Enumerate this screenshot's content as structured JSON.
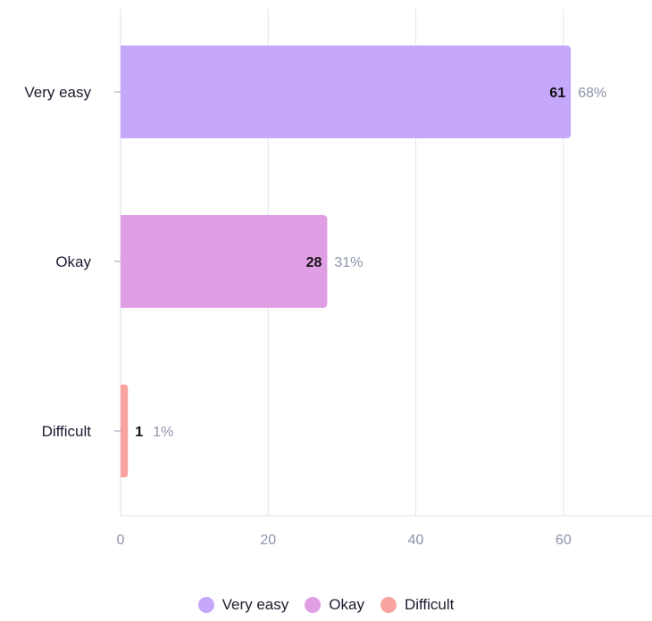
{
  "chart_data": {
    "type": "bar",
    "orientation": "horizontal",
    "categories": [
      "Very easy",
      "Okay",
      "Difficult"
    ],
    "values": [
      61,
      28,
      1
    ],
    "percent_labels": [
      "68%",
      "31%",
      "1%"
    ],
    "colors": [
      "#c5a8fb",
      "#e09fe4",
      "#f9a3a0"
    ],
    "xlim": [
      0,
      72
    ],
    "xticks": [
      0,
      20,
      40,
      60
    ],
    "grid": true,
    "legend_position": "bottom",
    "title": "",
    "xlabel": "",
    "ylabel": ""
  },
  "legend": {
    "items": [
      {
        "label": "Very easy",
        "color": "#c5a8fb"
      },
      {
        "label": "Okay",
        "color": "#e09fe4"
      },
      {
        "label": "Difficult",
        "color": "#f9a3a0"
      }
    ]
  }
}
